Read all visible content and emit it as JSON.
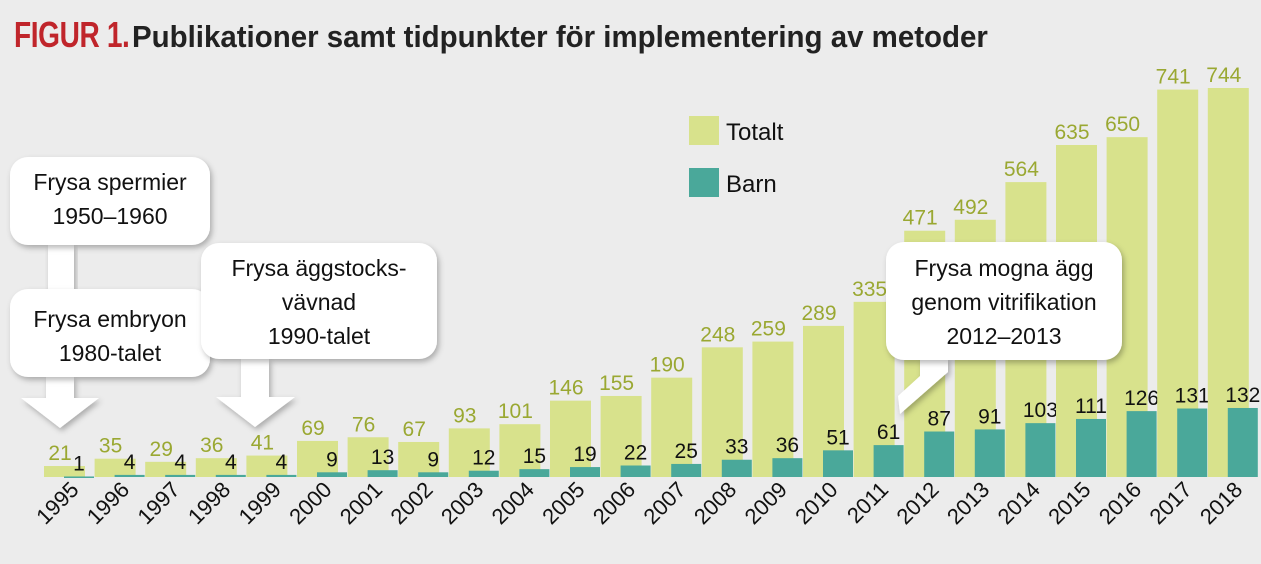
{
  "title": {
    "prefix": "FIGUR 1.",
    "text": "Publikationer samt tidpunkter för implementering av metoder"
  },
  "colors": {
    "totalt": "#d8e28c",
    "totalt_label": "#9aa832",
    "barn": "#4aa89a",
    "barn_label": "#111111",
    "background": "#ececec",
    "title_red": "#c0252b"
  },
  "legend": {
    "position": "top-right",
    "items": [
      {
        "key": "totalt",
        "label": "Totalt"
      },
      {
        "key": "barn",
        "label": "Barn"
      }
    ]
  },
  "chart_data": {
    "type": "bar",
    "title": "Publikationer samt tidpunkter för implementering av metoder",
    "xlabel": "",
    "ylabel": "",
    "categories": [
      "1995",
      "1996",
      "1997",
      "1998",
      "1999",
      "2000",
      "2001",
      "2002",
      "2003",
      "2004",
      "2005",
      "2006",
      "2007",
      "2008",
      "2009",
      "2010",
      "2011",
      "2012",
      "2013",
      "2014",
      "2015",
      "2016",
      "2017",
      "2018"
    ],
    "series": [
      {
        "name": "Totalt",
        "values": [
          21,
          35,
          29,
          36,
          41,
          69,
          76,
          67,
          93,
          101,
          146,
          155,
          190,
          248,
          259,
          289,
          335,
          471,
          492,
          564,
          635,
          650,
          741,
          744
        ]
      },
      {
        "name": "Barn",
        "values": [
          1,
          4,
          4,
          4,
          4,
          9,
          13,
          9,
          12,
          15,
          19,
          22,
          25,
          33,
          36,
          51,
          61,
          87,
          91,
          103,
          111,
          126,
          131,
          132
        ]
      }
    ],
    "ylim": [
      0,
      744
    ],
    "grid": false,
    "legend": "top-right"
  },
  "callouts": [
    {
      "lines": [
        "Frysa spermier",
        "1950–1960"
      ]
    },
    {
      "lines": [
        "Frysa embryon",
        "1980-talet"
      ],
      "points_to": "1995"
    },
    {
      "lines": [
        "Frysa äggstocks-",
        "vävnad",
        "1990-talet"
      ],
      "points_to": "1999"
    },
    {
      "lines": [
        "Frysa mogna ägg",
        "genom vitrifikation",
        "2012–2013"
      ],
      "points_to": "2012"
    }
  ]
}
